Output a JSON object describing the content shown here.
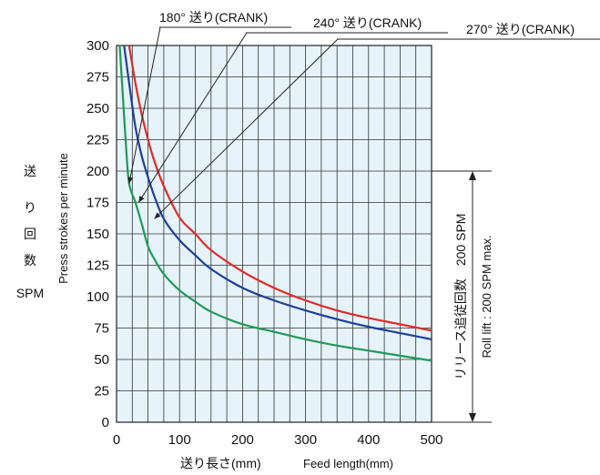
{
  "chart_data": {
    "type": "line",
    "x_label_jp": "送り長さ(mm)",
    "x_label_en": "Feed length(mm)",
    "y_label_jp": [
      "送",
      "り",
      "回",
      "数"
    ],
    "y_label_unit": "SPM",
    "y_label_en": "Press strokes per minute",
    "x_ticks": [
      "0",
      "100",
      "200",
      "300",
      "400",
      "500"
    ],
    "y_ticks": [
      "0",
      "25",
      "50",
      "75",
      "100",
      "125",
      "150",
      "175",
      "200",
      "225",
      "250",
      "275",
      "300"
    ],
    "xlim": [
      0,
      500
    ],
    "ylim": [
      0,
      300
    ],
    "grid": true,
    "grid_step_x": 25,
    "grid_step_y": 25,
    "series": [
      {
        "name": "180° 送り(CRANK)",
        "color": "#1f9a55",
        "points": [
          [
            5,
            300
          ],
          [
            10,
            260
          ],
          [
            15,
            220
          ],
          [
            20,
            190
          ],
          [
            30,
            175
          ],
          [
            40,
            158
          ],
          [
            50,
            140
          ],
          [
            60,
            130
          ],
          [
            75,
            118
          ],
          [
            100,
            105
          ],
          [
            125,
            96
          ],
          [
            150,
            88
          ],
          [
            200,
            78
          ],
          [
            250,
            72
          ],
          [
            300,
            66
          ],
          [
            350,
            61
          ],
          [
            400,
            57
          ],
          [
            450,
            53
          ],
          [
            500,
            49
          ]
        ]
      },
      {
        "name": "240° 送り(CRANK)",
        "color": "#1f3f98",
        "points": [
          [
            12,
            300
          ],
          [
            20,
            270
          ],
          [
            30,
            235
          ],
          [
            40,
            212
          ],
          [
            50,
            195
          ],
          [
            60,
            180
          ],
          [
            75,
            162
          ],
          [
            100,
            145
          ],
          [
            125,
            133
          ],
          [
            150,
            122
          ],
          [
            200,
            107
          ],
          [
            250,
            97
          ],
          [
            300,
            89
          ],
          [
            350,
            82
          ],
          [
            400,
            76
          ],
          [
            450,
            71
          ],
          [
            500,
            66
          ]
        ]
      },
      {
        "name": "270° 送り(CRANK)",
        "color": "#e02a28",
        "points": [
          [
            20,
            300
          ],
          [
            30,
            270
          ],
          [
            40,
            245
          ],
          [
            50,
            225
          ],
          [
            60,
            208
          ],
          [
            75,
            188
          ],
          [
            100,
            163
          ],
          [
            125,
            150
          ],
          [
            150,
            137
          ],
          [
            200,
            120
          ],
          [
            250,
            107
          ],
          [
            300,
            97
          ],
          [
            350,
            89
          ],
          [
            400,
            83
          ],
          [
            450,
            78
          ],
          [
            500,
            73
          ]
        ]
      }
    ],
    "roll_lift_label_jp": "リリース追従回数　200 SPM",
    "roll_lift_label_en": "Roll lift : 200 SPM max.",
    "roll_lift_value": 200
  }
}
